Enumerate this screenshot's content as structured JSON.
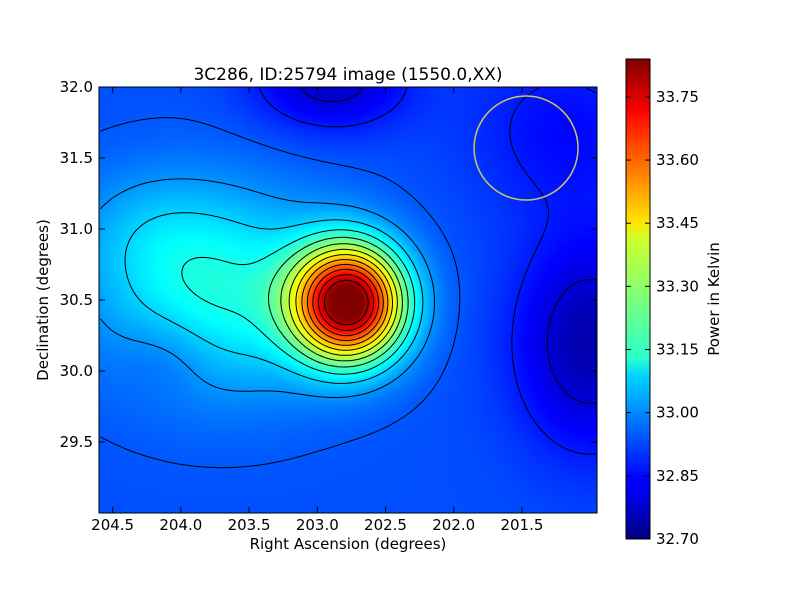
{
  "chart_data": {
    "type": "heatmap",
    "title": "3C286, ID:25794 image (1550.0,XX)",
    "xlabel": "Right Ascension (degrees)",
    "ylabel": "Declination (degrees)",
    "xlim": [
      204.6,
      200.95
    ],
    "ylim": [
      29.0,
      32.0
    ],
    "x_ticks": [
      "204.5",
      "204.0",
      "203.5",
      "203.0",
      "202.5",
      "202.0",
      "201.5"
    ],
    "x_tick_values": [
      204.5,
      204.0,
      203.5,
      203.0,
      202.5,
      202.0,
      201.5
    ],
    "y_ticks": [
      "29.5",
      "30.0",
      "30.5",
      "31.0",
      "31.5",
      "32.0"
    ],
    "y_tick_values": [
      29.5,
      30.0,
      30.5,
      31.0,
      31.5,
      32.0
    ],
    "colorbar": {
      "label": "Power in Kelvin",
      "min": 32.7,
      "max": 33.84,
      "ticks": [
        "32.70",
        "32.85",
        "33.00",
        "33.15",
        "33.30",
        "33.45",
        "33.60",
        "33.75"
      ],
      "tick_values": [
        32.7,
        32.85,
        33.0,
        33.15,
        33.3,
        33.45,
        33.6,
        33.75
      ],
      "colormap": "jet"
    },
    "peak": {
      "ra": 202.77,
      "dec": 30.48,
      "value": 33.84
    },
    "contours": "black contour lines around the peak",
    "beam": {
      "ra": 201.47,
      "dec": 31.57,
      "color": "#c8c85a"
    },
    "grid": false
  }
}
